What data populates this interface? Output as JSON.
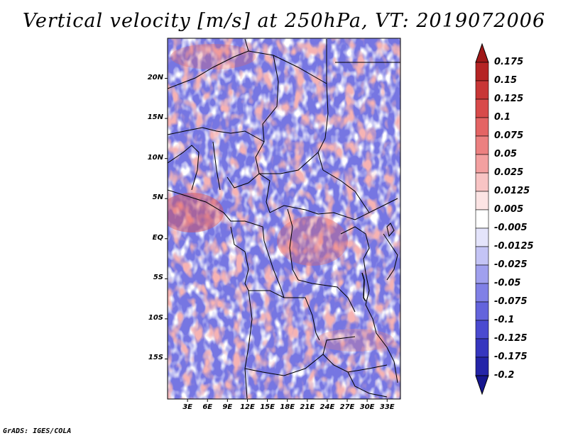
{
  "title": "Vertical velocity [m/s] at 250hPa, VT: 2019072006",
  "credit": "GrADS: IGES/COLA",
  "map": {
    "lat_labels": [
      "20N",
      "15N",
      "10N",
      "5N",
      "EQ",
      "5S",
      "10S",
      "15S"
    ],
    "lat_values": [
      20,
      15,
      10,
      5,
      0,
      -5,
      -10,
      -15
    ],
    "lon_labels": [
      "3E",
      "6E",
      "9E",
      "12E",
      "15E",
      "18E",
      "21E",
      "24E",
      "27E",
      "30E",
      "33E"
    ],
    "lon_values": [
      3,
      6,
      9,
      12,
      15,
      18,
      21,
      24,
      27,
      30,
      33
    ],
    "lon_range": [
      0,
      35
    ],
    "lat_range": [
      -20,
      25
    ]
  },
  "colorbar": {
    "labels": [
      "0.175",
      "0.15",
      "0.125",
      "0.1",
      "0.075",
      "0.05",
      "0.025",
      "0.0125",
      "0.005",
      "-0.005",
      "-0.0125",
      "-0.025",
      "-0.05",
      "-0.075",
      "-0.1",
      "-0.125",
      "-0.175",
      "-0.2"
    ],
    "colors": [
      "#a01818",
      "#b52424",
      "#c83636",
      "#d84a4a",
      "#e46464",
      "#ec8080",
      "#f3a0a0",
      "#f8c4c4",
      "#fce4e4",
      "#ffffff",
      "#e4e4fb",
      "#c4c4f5",
      "#a0a0ee",
      "#8080e6",
      "#6464dc",
      "#4a4ad0",
      "#3636bf",
      "#2424a8",
      "#16168f"
    ]
  }
}
